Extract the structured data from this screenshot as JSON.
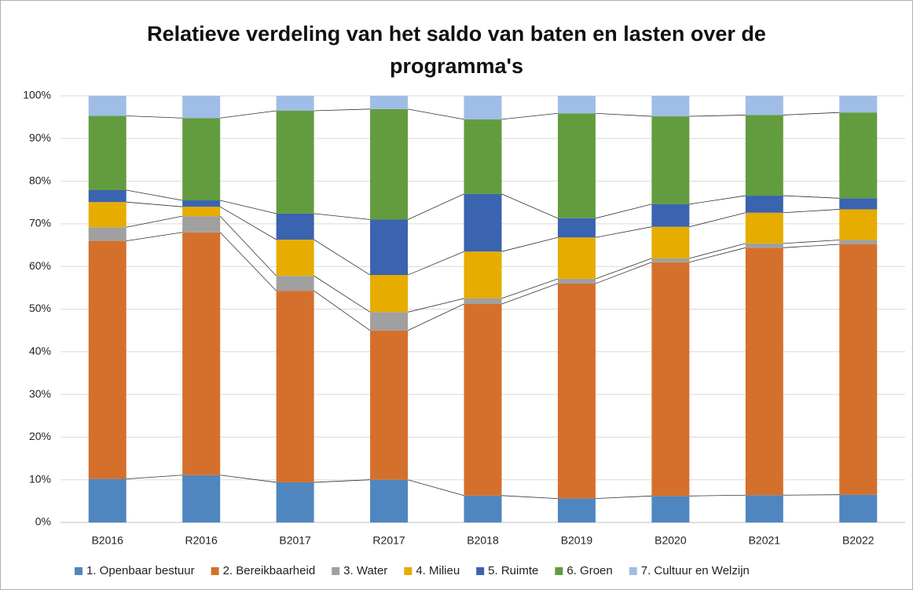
{
  "chart_data": {
    "type": "stacked_bar",
    "title": "Relatieve verdeling van het saldo van baten en lasten over de programma's",
    "categories": [
      "B2016",
      "R2016",
      "B2017",
      "R2017",
      "B2018",
      "B2019",
      "B2020",
      "B2021",
      "B2022"
    ],
    "series": [
      {
        "name": "1. Openbaar bestuur",
        "color": "#4f86c0",
        "values": [
          10.2,
          11.1,
          9.4,
          10,
          6.3,
          5.6,
          6.2,
          6.4,
          6.5
        ]
      },
      {
        "name": "2. Bereikbaarheid",
        "color": "#d4702b",
        "values": [
          55.8,
          56.9,
          44.9,
          35,
          44.9,
          50.4,
          54.8,
          58,
          58.7
        ]
      },
      {
        "name": "3. Water",
        "color": "#a0a0a0",
        "values": [
          3.2,
          3.8,
          3.5,
          4.3,
          1.3,
          1.1,
          0.9,
          1,
          1
        ]
      },
      {
        "name": "4. Milieu",
        "color": "#e6ac00",
        "values": [
          5.9,
          2.2,
          8.5,
          8.7,
          11,
          9.7,
          7.4,
          7.2,
          7.2
        ]
      },
      {
        "name": "5. Ruimte",
        "color": "#3a63b0",
        "values": [
          2.8,
          1.5,
          6.1,
          13,
          13.5,
          4.5,
          5.3,
          4,
          2.6
        ]
      },
      {
        "name": "6. Groen",
        "color": "#639c3f",
        "values": [
          17.4,
          19.3,
          24.1,
          25.9,
          17.5,
          24.6,
          20.6,
          18.9,
          20.1
        ]
      },
      {
        "name": "7. Cultuur en Welzijn",
        "color": "#9fbde6",
        "values": [
          4.7,
          5.2,
          3.5,
          3.1,
          5.5,
          4.1,
          4.8,
          4.5,
          3.9
        ]
      }
    ],
    "ylim": [
      0,
      100
    ],
    "yticks": [
      {
        "value": 0,
        "label": "0%"
      },
      {
        "value": 10,
        "label": "10%"
      },
      {
        "value": 20,
        "label": "20%"
      },
      {
        "value": 30,
        "label": "30%"
      },
      {
        "value": 40,
        "label": "40%"
      },
      {
        "value": 50,
        "label": "50%"
      },
      {
        "value": 60,
        "label": "60%"
      },
      {
        "value": 70,
        "label": "70%"
      },
      {
        "value": 80,
        "label": "80%"
      },
      {
        "value": 90,
        "label": "90%"
      },
      {
        "value": 100,
        "label": "100%"
      }
    ],
    "grid": true,
    "series_lines": true,
    "legend": "bottom"
  }
}
